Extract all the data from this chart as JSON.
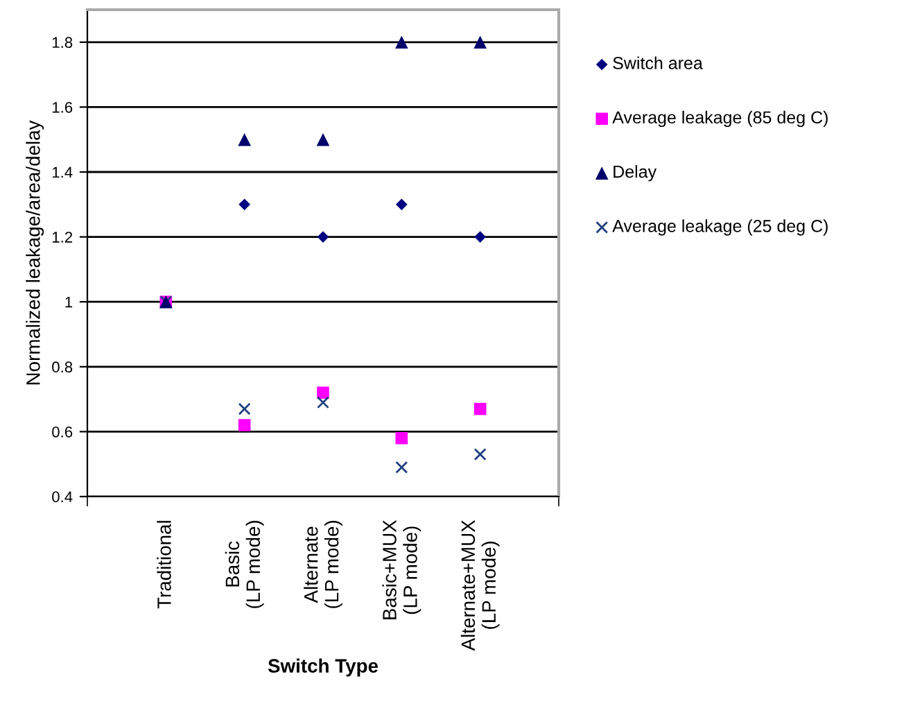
{
  "chart_data": {
    "type": "scatter",
    "xlabel": "Switch Type",
    "ylabel": "Normalized leakage/area/delay",
    "categories": [
      "Traditional",
      "Basic\n(LP mode)",
      "Alternate\n(LP mode)",
      "Basic+MUX\n(LP mode)",
      "Alternate+MUX\n(LP mode)"
    ],
    "series": [
      {
        "name": "Switch area",
        "color": "#000080",
        "marker": "diamond",
        "values": [
          null,
          1.3,
          1.2,
          1.3,
          1.2
        ]
      },
      {
        "name": "Average leakage (85 deg C)",
        "color": "#ff00ff",
        "marker": "square",
        "values": [
          1.0,
          0.62,
          0.72,
          0.58,
          0.67
        ]
      },
      {
        "name": "Delay",
        "color": "#00006a",
        "marker": "triangle",
        "values": [
          1.0,
          1.5,
          1.5,
          1.8,
          1.8
        ]
      },
      {
        "name": "Average leakage (25 deg C)",
        "color": "#1f3f7f",
        "marker": "cross",
        "values": [
          1.0,
          0.67,
          0.69,
          0.49,
          0.53
        ]
      }
    ],
    "ylim": [
      0.4,
      1.9
    ],
    "yticks": [
      {
        "value": 0.4,
        "label": "0.4"
      },
      {
        "value": 0.6,
        "label": "0.6"
      },
      {
        "value": 0.8,
        "label": "0.8"
      },
      1,
      {
        "value": 1.2,
        "label": "1.2"
      },
      {
        "value": 1.4,
        "label": "1.4"
      },
      {
        "value": 1.6,
        "label": "1.6"
      },
      {
        "value": 1.8,
        "label": "1.8"
      }
    ],
    "grid": "y",
    "legend": "right"
  }
}
